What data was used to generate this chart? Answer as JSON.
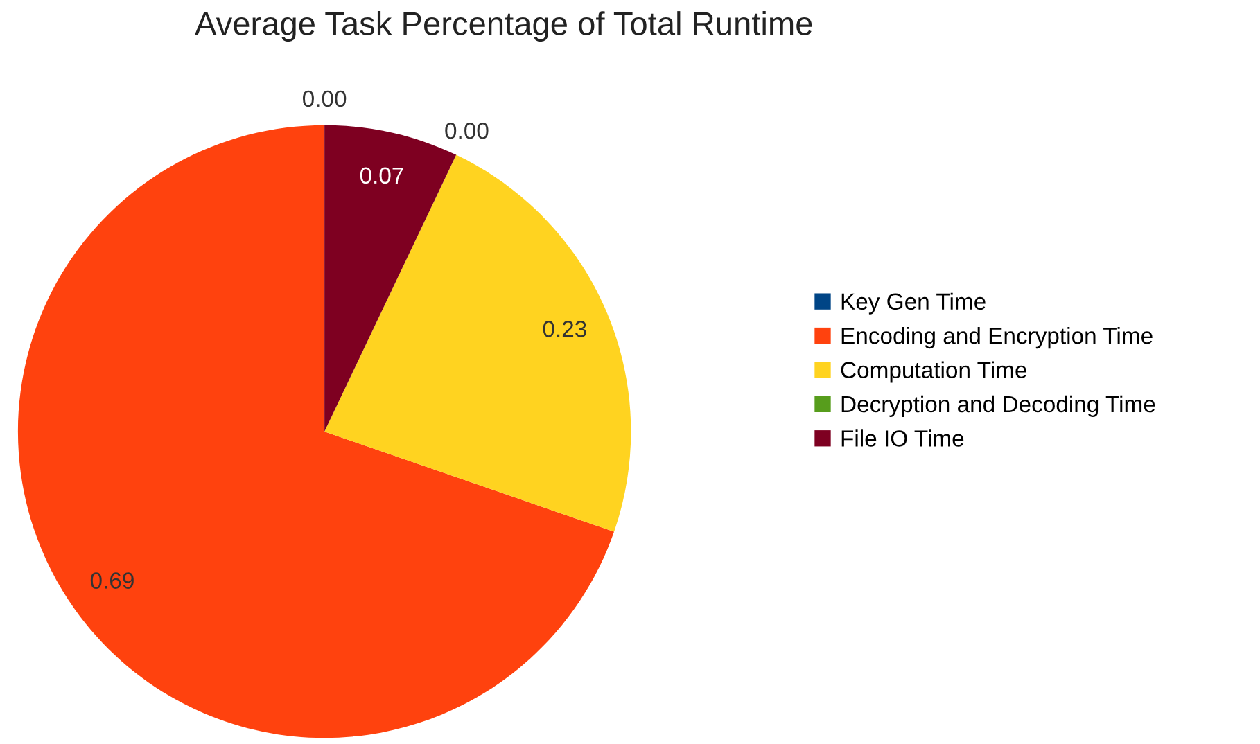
{
  "chart_data": {
    "type": "pie",
    "title": "Average Task Percentage of Total Runtime",
    "categories": [
      "Key Gen Time",
      "Encoding and Encryption Time",
      "Computation Time",
      "Decryption and Decoding Time",
      "File IO Time"
    ],
    "values": [
      0.0,
      0.69,
      0.23,
      0.0,
      0.07
    ],
    "value_labels": [
      "0.00",
      "0.69",
      "0.23",
      "0.00",
      "0.07"
    ],
    "colors": [
      "#004586",
      "#ff420e",
      "#ffd320",
      "#579d1c",
      "#7e0021"
    ],
    "legend": "right"
  }
}
